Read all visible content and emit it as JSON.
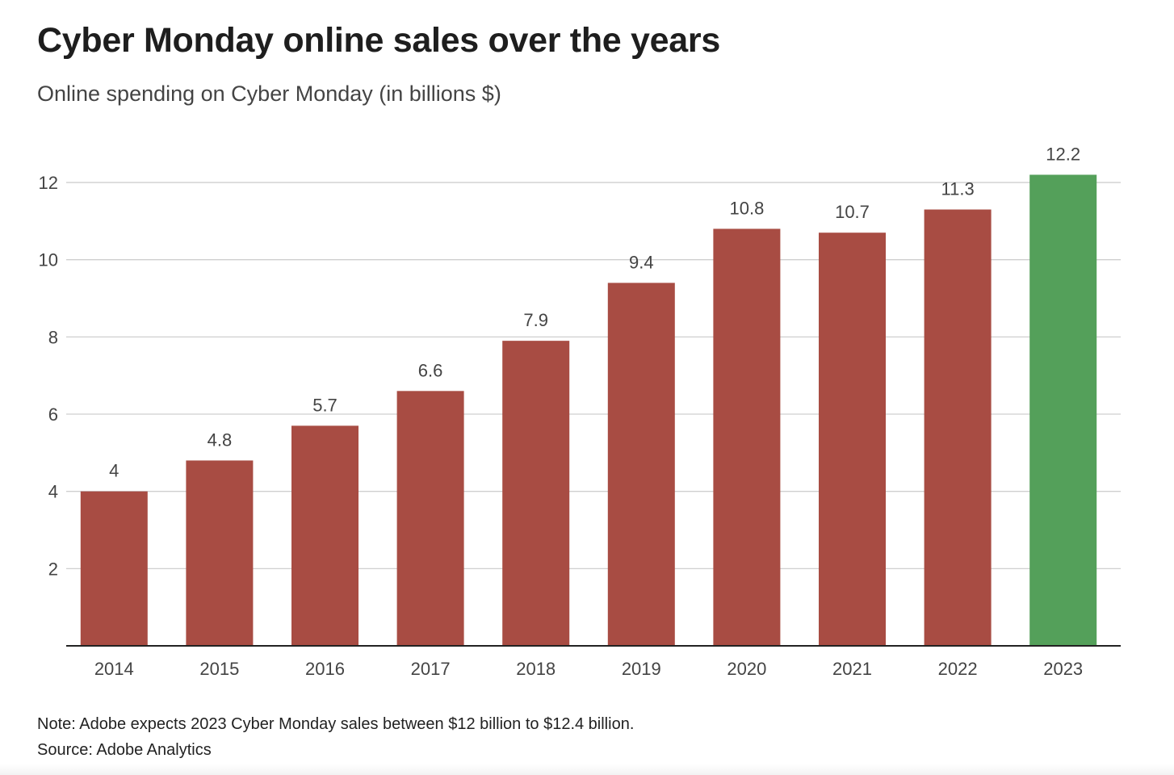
{
  "header": {
    "title": "Cyber Monday online sales over the years",
    "subtitle": "Online spending on Cyber Monday (in billions $)"
  },
  "footer": {
    "note": "Note: Adobe expects 2023 Cyber Monday sales between $12 billion to $12.4 billion.",
    "source": "Source: Adobe Analytics"
  },
  "chart_data": {
    "type": "bar",
    "title": "Cyber Monday online sales over the years",
    "subtitle": "Online spending on Cyber Monday (in billions $)",
    "categories": [
      "2014",
      "2015",
      "2016",
      "2017",
      "2018",
      "2019",
      "2020",
      "2021",
      "2022",
      "2023"
    ],
    "values": [
      4,
      4.8,
      5.7,
      6.6,
      7.9,
      9.4,
      10.8,
      10.7,
      11.3,
      12.2
    ],
    "value_labels": [
      "4",
      "4.8",
      "5.7",
      "6.6",
      "7.9",
      "9.4",
      "10.8",
      "10.7",
      "11.3",
      "12.2"
    ],
    "ylim": [
      0,
      12.6
    ],
    "yticks": [
      2,
      4,
      6,
      8,
      10,
      12
    ],
    "grid": true,
    "colors": {
      "default": "#a84c43",
      "highlight": "#54a05a",
      "highlight_category": "2023",
      "grid": "#cfcfcf",
      "axis": "#222222"
    }
  }
}
